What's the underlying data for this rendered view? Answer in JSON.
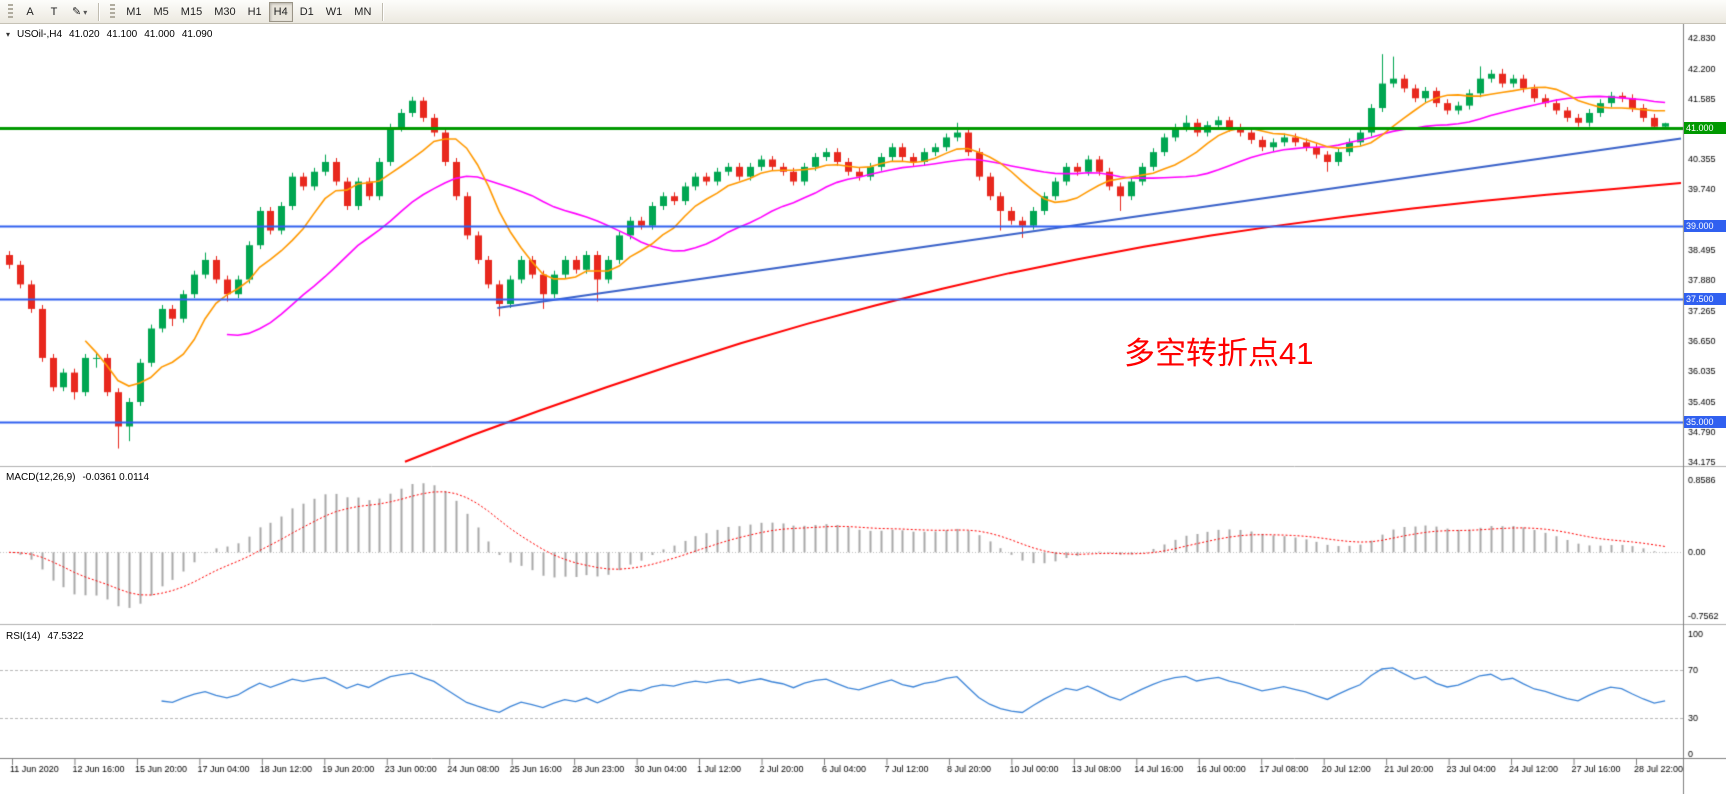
{
  "toolbar": {
    "buttons": [
      {
        "label": "A"
      },
      {
        "label": "T"
      }
    ],
    "timeframes": [
      {
        "label": "M1",
        "active": false
      },
      {
        "label": "M5",
        "active": false
      },
      {
        "label": "M15",
        "active": false
      },
      {
        "label": "M30",
        "active": false
      },
      {
        "label": "H1",
        "active": false
      },
      {
        "label": "H4",
        "active": true
      },
      {
        "label": "D1",
        "active": false
      },
      {
        "label": "W1",
        "active": false
      },
      {
        "label": "MN",
        "active": false
      }
    ]
  },
  "chart": {
    "header": {
      "symbol": "USOil-,H4",
      "open": "41.020",
      "high": "41.100",
      "low": "41.000",
      "close": "41.090"
    },
    "annotation": {
      "text": "多空转折点41",
      "color": "#FF0000"
    }
  },
  "indicators": {
    "macd": {
      "title": "MACD(12,26,9)",
      "values": "-0.0361 0.0114"
    },
    "rsi": {
      "title": "RSI(14)",
      "value": "47.5322"
    }
  },
  "chart_data": {
    "type": "candlestick",
    "symbol": "USOil-",
    "timeframe": "H4",
    "up_color": "#00A651",
    "down_color": "#E8281E",
    "price_axis": {
      "min": 34.175,
      "max": 42.83,
      "ticks": [
        "42.830",
        "42.200",
        "41.585",
        "40.355",
        "39.740",
        "38.495",
        "37.880",
        "37.265",
        "36.650",
        "36.035",
        "35.405",
        "34.790",
        "34.175"
      ]
    },
    "ohlc": [
      [
        38.4,
        38.48,
        38.12,
        38.2
      ],
      [
        38.2,
        38.28,
        37.72,
        37.8
      ],
      [
        37.8,
        37.88,
        37.22,
        37.3
      ],
      [
        37.3,
        37.38,
        36.22,
        36.3
      ],
      [
        36.3,
        36.38,
        35.62,
        35.7
      ],
      [
        35.7,
        36.08,
        35.62,
        36.0
      ],
      [
        36.0,
        36.08,
        35.45,
        35.6
      ],
      [
        35.6,
        36.38,
        35.52,
        36.3
      ],
      [
        36.3,
        36.42,
        36.1,
        36.3
      ],
      [
        36.3,
        36.38,
        35.52,
        35.6
      ],
      [
        35.6,
        35.68,
        34.45,
        34.9
      ],
      [
        34.9,
        35.48,
        34.6,
        35.4
      ],
      [
        35.4,
        36.28,
        35.32,
        36.2
      ],
      [
        36.2,
        36.98,
        36.12,
        36.9
      ],
      [
        36.9,
        37.38,
        36.82,
        37.3
      ],
      [
        37.3,
        37.38,
        36.95,
        37.1
      ],
      [
        37.1,
        37.68,
        37.02,
        37.6
      ],
      [
        37.6,
        38.08,
        37.52,
        38.0
      ],
      [
        38.0,
        38.45,
        37.92,
        38.3
      ],
      [
        38.3,
        38.38,
        37.82,
        37.9
      ],
      [
        37.9,
        37.98,
        37.45,
        37.6
      ],
      [
        37.6,
        37.98,
        37.52,
        37.9
      ],
      [
        37.9,
        38.68,
        37.82,
        38.6
      ],
      [
        38.6,
        39.38,
        38.52,
        39.3
      ],
      [
        39.3,
        39.38,
        38.82,
        38.9
      ],
      [
        38.9,
        39.48,
        38.82,
        39.4
      ],
      [
        39.4,
        40.08,
        39.32,
        40.0
      ],
      [
        40.0,
        40.08,
        39.72,
        39.8
      ],
      [
        39.8,
        40.18,
        39.72,
        40.1
      ],
      [
        40.1,
        40.45,
        40.02,
        40.3
      ],
      [
        40.3,
        40.38,
        39.82,
        39.9
      ],
      [
        39.9,
        39.98,
        39.32,
        39.4
      ],
      [
        39.4,
        39.98,
        39.32,
        39.9
      ],
      [
        39.9,
        39.98,
        39.52,
        39.6
      ],
      [
        39.6,
        40.38,
        39.52,
        40.3
      ],
      [
        40.3,
        41.08,
        40.22,
        41.0
      ],
      [
        41.0,
        41.38,
        40.92,
        41.3
      ],
      [
        41.3,
        41.63,
        41.22,
        41.55
      ],
      [
        41.55,
        41.62,
        41.12,
        41.2
      ],
      [
        41.2,
        41.28,
        40.82,
        40.9
      ],
      [
        40.9,
        40.98,
        40.22,
        40.3
      ],
      [
        40.3,
        40.38,
        39.52,
        39.6
      ],
      [
        39.6,
        39.68,
        38.72,
        38.8
      ],
      [
        38.8,
        38.88,
        38.22,
        38.3
      ],
      [
        38.3,
        38.38,
        37.72,
        37.8
      ],
      [
        37.8,
        37.88,
        37.15,
        37.4
      ],
      [
        37.4,
        37.98,
        37.32,
        37.9
      ],
      [
        37.9,
        38.38,
        37.82,
        38.3
      ],
      [
        38.3,
        38.38,
        37.92,
        38.0
      ],
      [
        38.0,
        38.08,
        37.3,
        37.6
      ],
      [
        37.6,
        38.08,
        37.52,
        38.0
      ],
      [
        38.0,
        38.38,
        37.92,
        38.3
      ],
      [
        38.3,
        38.38,
        38.02,
        38.1
      ],
      [
        38.1,
        38.48,
        38.02,
        38.4
      ],
      [
        38.4,
        38.48,
        37.45,
        37.9
      ],
      [
        37.9,
        38.38,
        37.82,
        38.3
      ],
      [
        38.3,
        38.88,
        38.22,
        38.8
      ],
      [
        38.8,
        39.18,
        38.72,
        39.1
      ],
      [
        39.1,
        39.18,
        38.92,
        39.0
      ],
      [
        39.0,
        39.48,
        38.92,
        39.4
      ],
      [
        39.4,
        39.68,
        39.32,
        39.6
      ],
      [
        39.6,
        39.68,
        39.42,
        39.5
      ],
      [
        39.5,
        39.88,
        39.42,
        39.8
      ],
      [
        39.8,
        40.08,
        39.72,
        40.0
      ],
      [
        40.0,
        40.08,
        39.82,
        39.9
      ],
      [
        39.9,
        40.18,
        39.82,
        40.1
      ],
      [
        40.1,
        40.28,
        40.02,
        40.2
      ],
      [
        40.2,
        40.28,
        39.92,
        40.0
      ],
      [
        40.0,
        40.28,
        39.92,
        40.2
      ],
      [
        40.2,
        40.43,
        40.12,
        40.35
      ],
      [
        40.35,
        40.42,
        40.12,
        40.2
      ],
      [
        40.2,
        40.28,
        40.02,
        40.1
      ],
      [
        40.1,
        40.18,
        39.82,
        39.9
      ],
      [
        39.9,
        40.28,
        39.82,
        40.2
      ],
      [
        40.2,
        40.48,
        40.12,
        40.4
      ],
      [
        40.4,
        40.58,
        40.32,
        40.5
      ],
      [
        40.5,
        40.58,
        40.22,
        40.3
      ],
      [
        40.3,
        40.38,
        40.02,
        40.1
      ],
      [
        40.1,
        40.18,
        39.92,
        40.0
      ],
      [
        40.0,
        40.28,
        39.92,
        40.2
      ],
      [
        40.2,
        40.48,
        40.12,
        40.4
      ],
      [
        40.4,
        40.68,
        40.32,
        40.6
      ],
      [
        40.6,
        40.68,
        40.32,
        40.4
      ],
      [
        40.4,
        40.48,
        40.22,
        40.3
      ],
      [
        40.3,
        40.58,
        40.22,
        40.5
      ],
      [
        40.5,
        40.68,
        40.42,
        40.6
      ],
      [
        40.6,
        40.88,
        40.52,
        40.8
      ],
      [
        40.8,
        41.1,
        40.72,
        40.9
      ],
      [
        40.9,
        40.98,
        40.42,
        40.5
      ],
      [
        40.5,
        40.58,
        39.92,
        40.0
      ],
      [
        40.0,
        40.08,
        39.52,
        39.6
      ],
      [
        39.6,
        39.68,
        38.9,
        39.3
      ],
      [
        39.3,
        39.38,
        39.02,
        39.1
      ],
      [
        39.1,
        39.18,
        38.75,
        39.0
      ],
      [
        39.0,
        39.38,
        38.92,
        39.3
      ],
      [
        39.3,
        39.68,
        39.22,
        39.6
      ],
      [
        39.6,
        39.98,
        39.52,
        39.9
      ],
      [
        39.9,
        40.28,
        39.82,
        40.2
      ],
      [
        40.2,
        40.28,
        40.02,
        40.1
      ],
      [
        40.1,
        40.43,
        40.02,
        40.35
      ],
      [
        40.35,
        40.42,
        40.02,
        40.1
      ],
      [
        40.1,
        40.18,
        39.72,
        39.8
      ],
      [
        39.8,
        39.88,
        39.3,
        39.6
      ],
      [
        39.6,
        39.98,
        39.52,
        39.9
      ],
      [
        39.9,
        40.28,
        39.82,
        40.2
      ],
      [
        40.2,
        40.58,
        40.12,
        40.5
      ],
      [
        40.5,
        40.88,
        40.42,
        40.8
      ],
      [
        40.8,
        41.08,
        40.72,
        41.0
      ],
      [
        41.0,
        41.25,
        40.92,
        41.1
      ],
      [
        41.1,
        41.18,
        40.82,
        40.9
      ],
      [
        40.9,
        41.13,
        40.82,
        41.05
      ],
      [
        41.05,
        41.23,
        40.97,
        41.15
      ],
      [
        41.15,
        41.22,
        40.92,
        41.0
      ],
      [
        41.0,
        41.08,
        40.82,
        40.9
      ],
      [
        40.9,
        40.98,
        40.67,
        40.75
      ],
      [
        40.75,
        40.82,
        40.52,
        40.6
      ],
      [
        40.6,
        40.78,
        40.52,
        40.7
      ],
      [
        40.7,
        40.88,
        40.62,
        40.8
      ],
      [
        40.8,
        40.88,
        40.62,
        40.7
      ],
      [
        40.7,
        40.78,
        40.52,
        40.6
      ],
      [
        40.6,
        40.68,
        40.37,
        40.45
      ],
      [
        40.45,
        40.52,
        40.1,
        40.3
      ],
      [
        40.3,
        40.58,
        40.22,
        40.5
      ],
      [
        40.5,
        40.78,
        40.42,
        40.7
      ],
      [
        40.7,
        40.98,
        40.62,
        40.9
      ],
      [
        40.9,
        41.48,
        40.82,
        41.4
      ],
      [
        41.4,
        42.5,
        41.32,
        41.9
      ],
      [
        41.9,
        42.45,
        41.82,
        42.0
      ],
      [
        42.0,
        42.08,
        41.72,
        41.8
      ],
      [
        41.8,
        41.88,
        41.52,
        41.6
      ],
      [
        41.6,
        41.83,
        41.52,
        41.75
      ],
      [
        41.75,
        41.82,
        41.42,
        41.5
      ],
      [
        41.5,
        41.58,
        41.27,
        41.35
      ],
      [
        41.35,
        41.53,
        41.27,
        41.45
      ],
      [
        41.45,
        41.78,
        41.37,
        41.7
      ],
      [
        41.7,
        42.25,
        41.62,
        42.0
      ],
      [
        42.0,
        42.18,
        41.92,
        42.1
      ],
      [
        42.1,
        42.2,
        41.82,
        41.9
      ],
      [
        41.9,
        42.08,
        41.82,
        42.0
      ],
      [
        42.0,
        42.08,
        41.72,
        41.8
      ],
      [
        41.8,
        41.88,
        41.52,
        41.6
      ],
      [
        41.6,
        41.68,
        41.42,
        41.5
      ],
      [
        41.5,
        41.58,
        41.27,
        41.35
      ],
      [
        41.35,
        41.42,
        41.12,
        41.2
      ],
      [
        41.2,
        41.28,
        41.02,
        41.1
      ],
      [
        41.1,
        41.38,
        41.02,
        41.3
      ],
      [
        41.3,
        41.58,
        41.22,
        41.5
      ],
      [
        41.5,
        41.73,
        41.42,
        41.65
      ],
      [
        41.65,
        41.72,
        41.52,
        41.6
      ],
      [
        41.6,
        41.68,
        41.32,
        41.4
      ],
      [
        41.4,
        41.48,
        41.12,
        41.2
      ],
      [
        41.2,
        41.28,
        40.97,
        41.02
      ],
      [
        41.02,
        41.1,
        41.0,
        41.09
      ]
    ],
    "overlays": {
      "ma_fast": {
        "type": "sma",
        "period": 8,
        "color": "#FF9900"
      },
      "ma_mid": {
        "type": "sma",
        "period": 21,
        "color": "#FF00FF"
      },
      "ma_long": {
        "color": "#FF0000",
        "points": [
          [
            0.24,
            34.18
          ],
          [
            0.28,
            34.72
          ],
          [
            0.32,
            35.22
          ],
          [
            0.36,
            35.7
          ],
          [
            0.4,
            36.16
          ],
          [
            0.44,
            36.6
          ],
          [
            0.48,
            37.0
          ],
          [
            0.52,
            37.37
          ],
          [
            0.56,
            37.71
          ],
          [
            0.6,
            38.03
          ],
          [
            0.64,
            38.31
          ],
          [
            0.68,
            38.57
          ],
          [
            0.72,
            38.8
          ],
          [
            0.76,
            39.0
          ],
          [
            0.8,
            39.18
          ],
          [
            0.84,
            39.35
          ],
          [
            0.88,
            39.5
          ],
          [
            0.92,
            39.63
          ],
          [
            0.96,
            39.75
          ],
          [
            1,
            39.87
          ]
        ]
      },
      "trendline": {
        "color": "#3A62C9",
        "points": [
          [
            0.295,
            37.32
          ],
          [
            1,
            40.78
          ]
        ]
      }
    },
    "hlines": [
      {
        "price": 41.0,
        "label": "41.000",
        "color": "#009900"
      },
      {
        "price": 39.0,
        "label": "39.000",
        "color": "#3060F0"
      },
      {
        "price": 37.5,
        "label": "37.500",
        "color": "#3060F0"
      },
      {
        "price": 35.0,
        "label": "35.000",
        "color": "#3060F0"
      }
    ],
    "macd": {
      "params": [
        12,
        26,
        9
      ],
      "histogram_color": "#A9A9A9",
      "signal_color": "#FF0000",
      "axis": [
        "0.8586",
        "0.00",
        "-0.7562"
      ]
    },
    "rsi": {
      "period": 14,
      "color": "#3D85D8",
      "levels": [
        70,
        30
      ],
      "axis": [
        "100",
        "70",
        "30",
        "0"
      ]
    },
    "time_labels": [
      "11 Jun 2020",
      "12 Jun 16:00",
      "15 Jun 20:00",
      "17 Jun 04:00",
      "18 Jun 12:00",
      "19 Jun 20:00",
      "23 Jun 00:00",
      "24 Jun 08:00",
      "25 Jun 16:00",
      "28 Jun 23:00",
      "30 Jun 04:00",
      "1 Jul 12:00",
      "2 Jul 20:00",
      "6 Jul 04:00",
      "7 Jul 12:00",
      "8 Jul 20:00",
      "10 Jul 00:00",
      "13 Jul 08:00",
      "14 Jul 16:00",
      "16 Jul 00:00",
      "17 Jul 08:00",
      "20 Jul 12:00",
      "21 Jul 20:00",
      "23 Jul 04:00",
      "24 Jul 12:00",
      "27 Jul 16:00",
      "28 Jul 22:00"
    ]
  }
}
